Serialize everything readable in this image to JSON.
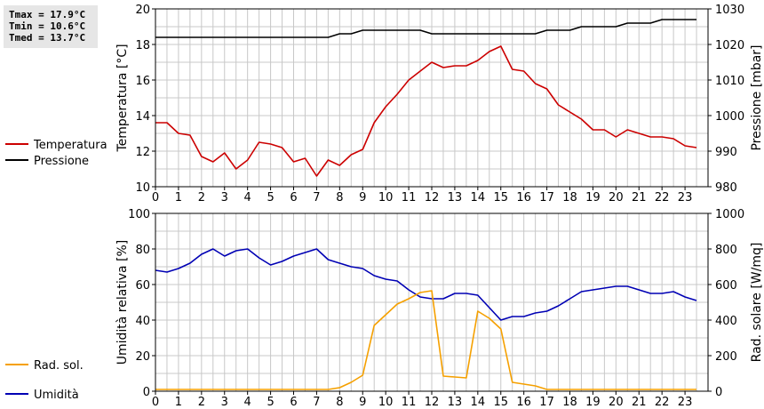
{
  "stats": {
    "tmax": "Tmax = 17.9°C",
    "tmin": "Tmin = 10.6°C",
    "tmed": "Tmed = 13.7°C"
  },
  "colors": {
    "temperature": "#cc0000",
    "pressure": "#000000",
    "humidity": "#0000b4",
    "solar": "#f5a000",
    "grid": "#c8c8c8"
  },
  "chart_data": [
    {
      "type": "line",
      "xlim": [
        0,
        24
      ],
      "x_ticks": [
        0,
        1,
        2,
        3,
        4,
        5,
        6,
        7,
        8,
        9,
        10,
        11,
        12,
        13,
        14,
        15,
        16,
        17,
        18,
        19,
        20,
        21,
        22,
        23
      ],
      "ylabel": "Temperatura [°C]",
      "ylim": [
        10,
        20
      ],
      "y_ticks": [
        10,
        12,
        14,
        16,
        18,
        20
      ],
      "y2label": "Pressione [mbar]",
      "y2lim": [
        980,
        1030
      ],
      "y2_ticks": [
        980,
        990,
        1000,
        1010,
        1020,
        1030
      ],
      "grid": true,
      "legend_position": "left",
      "series": [
        {
          "name": "Temperatura",
          "axis": "left",
          "x": [
            0,
            0.5,
            1,
            1.5,
            2,
            2.5,
            3,
            3.5,
            4,
            4.5,
            5,
            5.5,
            6,
            6.5,
            7,
            7.5,
            8,
            8.5,
            9,
            9.5,
            10,
            10.5,
            11,
            11.5,
            12,
            12.5,
            13,
            13.5,
            14,
            14.5,
            15,
            15.5,
            16,
            16.5,
            17,
            17.5,
            18,
            18.5,
            19,
            19.5,
            20,
            20.5,
            21,
            21.5,
            22,
            22.5,
            23,
            23.5
          ],
          "values": [
            13.6,
            13.6,
            13.0,
            12.9,
            11.7,
            11.4,
            11.9,
            11.0,
            11.5,
            12.5,
            12.4,
            12.2,
            11.4,
            11.6,
            10.6,
            11.5,
            11.2,
            11.8,
            12.1,
            13.6,
            14.5,
            15.2,
            16.0,
            16.5,
            17.0,
            16.7,
            16.8,
            16.8,
            17.1,
            17.6,
            17.9,
            16.6,
            16.5,
            15.8,
            15.5,
            14.6,
            14.2,
            13.8,
            13.2,
            13.2,
            12.8,
            13.2,
            13.0,
            12.8,
            12.8,
            12.7,
            12.3,
            12.2
          ]
        },
        {
          "name": "Pressione",
          "axis": "right",
          "x": [
            0,
            7.5,
            8,
            8.5,
            9,
            11.5,
            12,
            16.5,
            17,
            18,
            18.5,
            20,
            20.5,
            21.5,
            22,
            23.5
          ],
          "values": [
            1022,
            1022,
            1023,
            1023,
            1024,
            1024,
            1023,
            1023,
            1024,
            1024,
            1025,
            1025,
            1026,
            1026,
            1027,
            1027
          ]
        }
      ]
    },
    {
      "type": "line",
      "xlim": [
        0,
        24
      ],
      "x_ticks": [
        0,
        1,
        2,
        3,
        4,
        5,
        6,
        7,
        8,
        9,
        10,
        11,
        12,
        13,
        14,
        15,
        16,
        17,
        18,
        19,
        20,
        21,
        22,
        23
      ],
      "ylabel": "Umidità relativa [%]",
      "ylim": [
        0,
        100
      ],
      "y_ticks": [
        0,
        20,
        40,
        60,
        80,
        100
      ],
      "y2label": "Rad. solare [W/mq]",
      "y2lim": [
        0,
        1000
      ],
      "y2_ticks": [
        0,
        200,
        400,
        600,
        800,
        1000
      ],
      "grid": true,
      "legend_position": "left",
      "series": [
        {
          "name": "Umidità",
          "axis": "left",
          "x": [
            0,
            0.5,
            1,
            1.5,
            2,
            2.5,
            3,
            3.5,
            4,
            4.5,
            5,
            5.5,
            6,
            6.5,
            7,
            7.5,
            8,
            8.5,
            9,
            9.5,
            10,
            10.5,
            11,
            11.5,
            12,
            12.5,
            13,
            13.5,
            14,
            14.5,
            15,
            15.5,
            16,
            16.5,
            17,
            17.5,
            18,
            18.5,
            19,
            19.5,
            20,
            20.5,
            21,
            21.5,
            22,
            22.5,
            23,
            23.5
          ],
          "values": [
            68,
            67,
            69,
            72,
            77,
            80,
            76,
            79,
            80,
            75,
            71,
            73,
            76,
            78,
            80,
            74,
            72,
            70,
            69,
            65,
            63,
            62,
            57,
            53,
            52,
            52,
            55,
            55,
            54,
            47,
            40,
            42,
            42,
            44,
            45,
            48,
            52,
            56,
            57,
            58,
            59,
            59,
            57,
            55,
            55,
            56,
            53,
            51
          ]
        },
        {
          "name": "Rad. sol.",
          "axis": "right",
          "x": [
            0,
            7.5,
            8,
            8.5,
            9,
            9.5,
            10,
            10.5,
            11,
            11.5,
            12,
            12.5,
            13,
            13.5,
            14,
            14.5,
            15,
            15.5,
            16,
            16.5,
            17,
            23.5
          ],
          "values": [
            10,
            10,
            20,
            50,
            90,
            370,
            430,
            490,
            520,
            555,
            565,
            85,
            80,
            75,
            450,
            410,
            350,
            50,
            40,
            30,
            10,
            10
          ]
        }
      ]
    }
  ]
}
